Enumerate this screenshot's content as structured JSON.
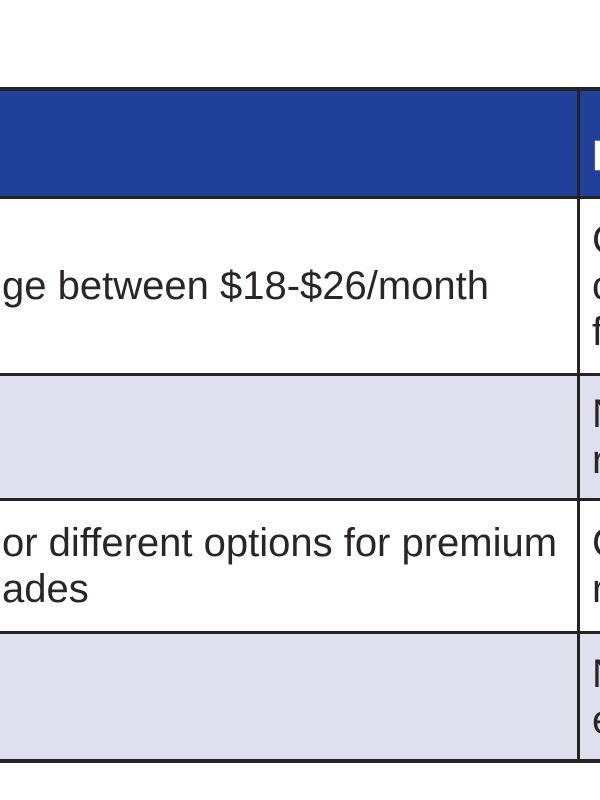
{
  "table": {
    "colors": {
      "header_bg": "#20409a",
      "header_text": "#ffffff",
      "row_bg": "#ffffff",
      "row_alt_bg": "#dfdfee",
      "border": "#262324",
      "text": "#2a2627"
    },
    "header": {
      "left_label_fragment": "",
      "right_label_fragment": "R"
    },
    "rows": [
      {
        "left_lines": [
          "ge between $18-$26/month"
        ],
        "right_line_fragments": [
          "C",
          "c",
          "f"
        ]
      },
      {
        "left_lines": [],
        "right_line_fragments": [
          "N",
          "r"
        ]
      },
      {
        "left_lines": [
          "or different options for premium",
          "ades"
        ],
        "right_line_fragments": [
          "C",
          "r"
        ]
      },
      {
        "left_lines": [],
        "right_line_fragments": [
          "N",
          "e"
        ]
      }
    ]
  }
}
